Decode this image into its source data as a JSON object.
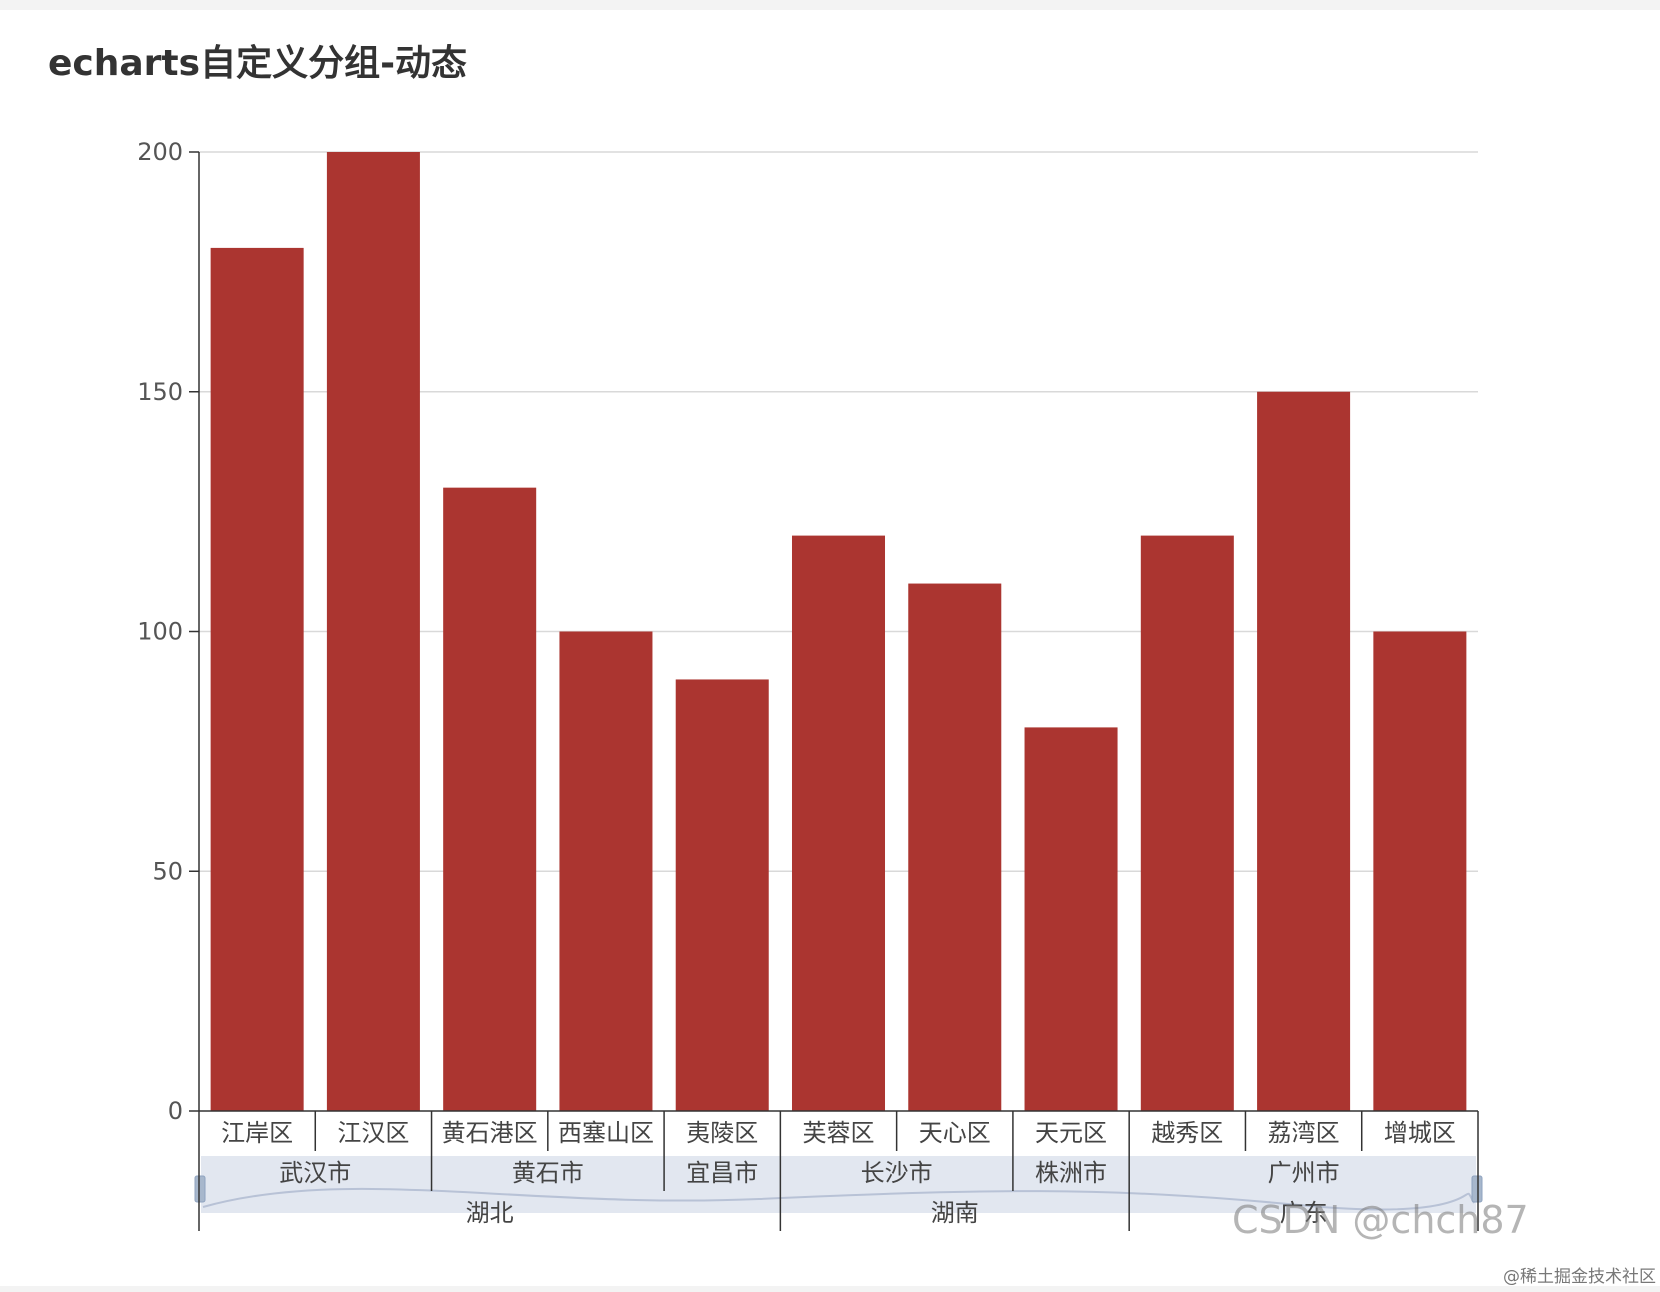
{
  "page": {
    "title": "echarts自定义分组-动态"
  },
  "chart_data": {
    "type": "bar",
    "title": "echarts自定义分组-动态",
    "categories": [
      "江岸区",
      "江汉区",
      "黄石港区",
      "西塞山区",
      "夷陵区",
      "芙蓉区",
      "天心区",
      "天元区",
      "越秀区",
      "荔湾区",
      "增城区"
    ],
    "values": [
      180,
      200,
      130,
      100,
      90,
      120,
      110,
      80,
      120,
      150,
      100
    ],
    "ylim": [
      0,
      200
    ],
    "yticks": [
      0,
      50,
      100,
      150,
      200
    ],
    "grid": true,
    "bar_color": "#ab3530",
    "cities": [
      {
        "label": "武汉市",
        "start": 0,
        "end": 1
      },
      {
        "label": "黄石市",
        "start": 2,
        "end": 3
      },
      {
        "label": "宜昌市",
        "start": 4,
        "end": 4
      },
      {
        "label": "长沙市",
        "start": 5,
        "end": 6
      },
      {
        "label": "株洲市",
        "start": 7,
        "end": 7
      },
      {
        "label": "广州市",
        "start": 8,
        "end": 10
      }
    ],
    "provinces": [
      {
        "label": "湖北",
        "start": 0,
        "end": 4
      },
      {
        "label": "湖南",
        "start": 5,
        "end": 7
      },
      {
        "label": "广东",
        "start": 8,
        "end": 10
      }
    ]
  },
  "watermark": "CSDN @chch87",
  "source": "@稀土掘金技术社区"
}
